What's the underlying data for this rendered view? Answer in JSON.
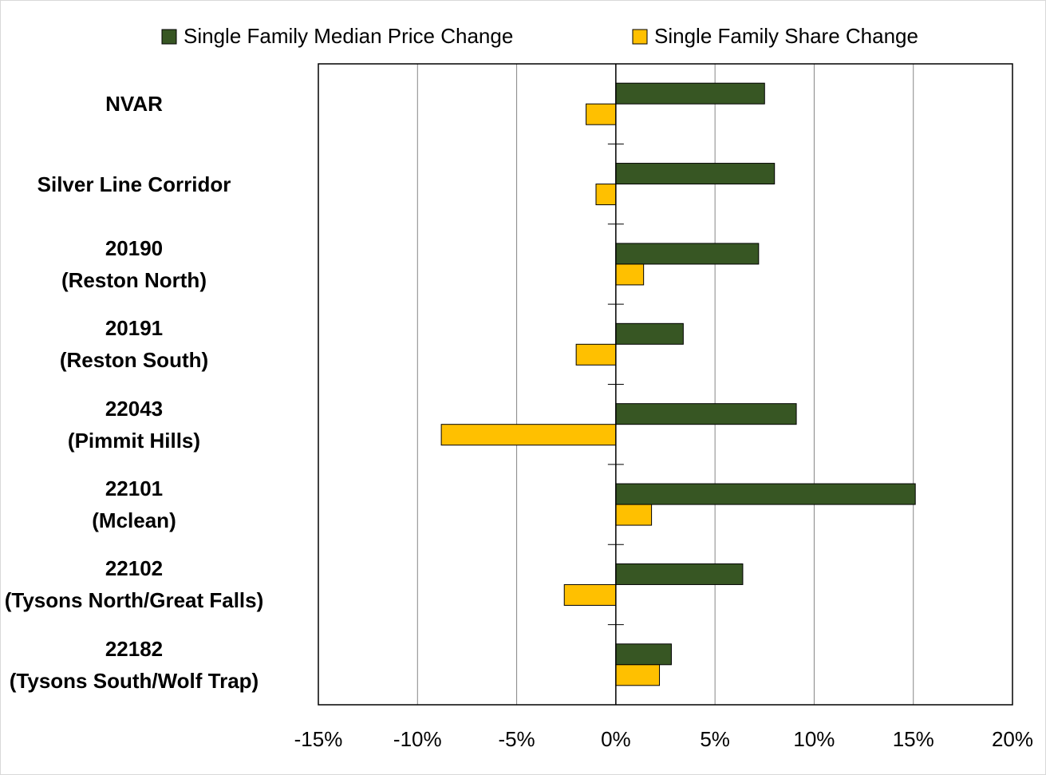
{
  "chart_data": {
    "type": "bar",
    "orientation": "horizontal",
    "categories": [
      "NVAR",
      "Silver Line Corridor",
      "20190\n(Reston North)",
      "20191\n(Reston South)",
      "22043\n(Pimmit Hills)",
      "22101\n(Mclean)",
      "22102\n(Tysons North/Great Falls)",
      "22182\n(Tysons South/Wolf Trap)"
    ],
    "series": [
      {
        "name": "Single Family Median Price Change",
        "color": "#375623",
        "values": [
          7.5,
          8.0,
          7.2,
          3.4,
          9.1,
          15.1,
          6.4,
          2.8
        ]
      },
      {
        "name": "Single Family Share Change",
        "color": "#ffc000",
        "values": [
          -1.5,
          -1.0,
          1.4,
          -2.0,
          -8.8,
          1.8,
          -2.6,
          2.2
        ]
      }
    ],
    "xlim": [
      -15,
      20
    ],
    "xticks": [
      {
        "value": -15,
        "label": "-15%"
      },
      {
        "value": -10,
        "label": "-10%"
      },
      {
        "value": -5,
        "label": "-5%"
      },
      {
        "value": 0,
        "label": "0%"
      },
      {
        "value": 5,
        "label": "5%"
      },
      {
        "value": 10,
        "label": "10%"
      },
      {
        "value": 15,
        "label": "15%"
      },
      {
        "value": 20,
        "label": "20%"
      }
    ],
    "grid": true,
    "legend": "top"
  }
}
